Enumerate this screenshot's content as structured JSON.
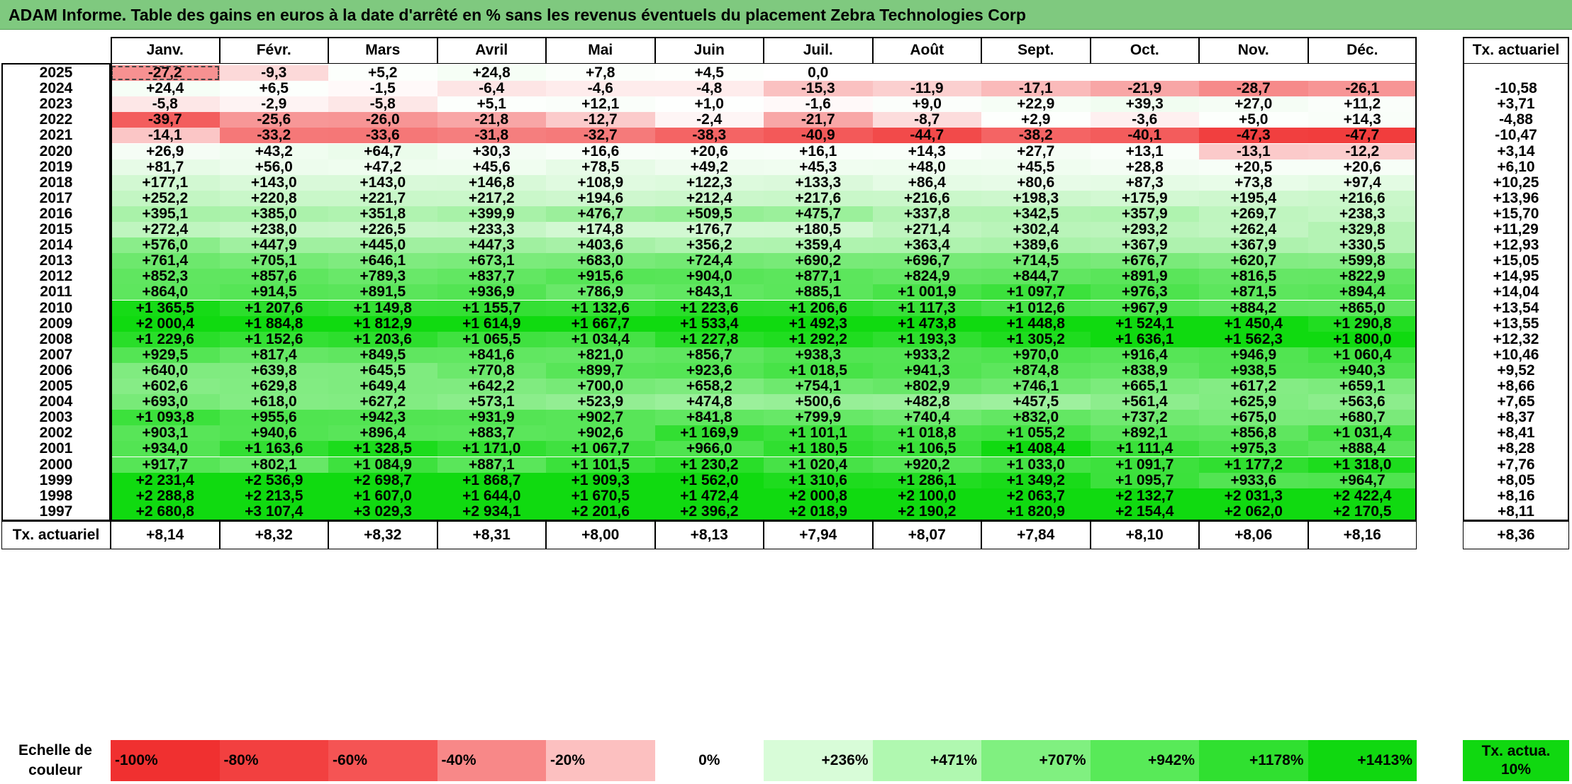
{
  "title": "ADAM Informe. Table des gains en euros à la date d'arrêté en % sans les revenus éventuels du placement Zebra Technologies Corp",
  "chart_data": {
    "type": "table",
    "columns": [
      "Janv.",
      "Févr.",
      "Mars",
      "Avril",
      "Mai",
      "Juin",
      "Juil.",
      "Août",
      "Sept.",
      "Oct.",
      "Nov.",
      "Déc."
    ],
    "rate_header": "Tx. actuariel",
    "rows": [
      {
        "year": "2025",
        "values": [
          "-27,2",
          "-9,3",
          "+5,2",
          "+24,8",
          "+7,8",
          "+4,5",
          "0,0",
          "",
          "",
          "",
          "",
          ""
        ],
        "rate": ""
      },
      {
        "year": "2024",
        "values": [
          "+24,4",
          "+6,5",
          "-1,5",
          "-6,4",
          "-4,6",
          "-4,8",
          "-15,3",
          "-11,9",
          "-17,1",
          "-21,9",
          "-28,7",
          "-26,1"
        ],
        "rate": "-10,58"
      },
      {
        "year": "2023",
        "values": [
          "-5,8",
          "-2,9",
          "-5,8",
          "+5,1",
          "+12,1",
          "+1,0",
          "-1,6",
          "+9,0",
          "+22,9",
          "+39,3",
          "+27,0",
          "+11,2"
        ],
        "rate": "+3,71"
      },
      {
        "year": "2022",
        "values": [
          "-39,7",
          "-25,6",
          "-26,0",
          "-21,8",
          "-12,7",
          "-2,4",
          "-21,7",
          "-8,7",
          "+2,9",
          "-3,6",
          "+5,0",
          "+14,3"
        ],
        "rate": "-4,88"
      },
      {
        "year": "2021",
        "values": [
          "-14,1",
          "-33,2",
          "-33,6",
          "-31,8",
          "-32,7",
          "-38,3",
          "-40,9",
          "-44,7",
          "-38,2",
          "-40,1",
          "-47,3",
          "-47,7"
        ],
        "rate": "-10,47"
      },
      {
        "year": "2020",
        "values": [
          "+26,9",
          "+43,2",
          "+64,7",
          "+30,3",
          "+16,6",
          "+20,6",
          "+16,1",
          "+14,3",
          "+27,7",
          "+13,1",
          "-13,1",
          "-12,2"
        ],
        "rate": "+3,14"
      },
      {
        "year": "2019",
        "values": [
          "+81,7",
          "+56,0",
          "+47,2",
          "+45,6",
          "+78,5",
          "+49,2",
          "+45,3",
          "+48,0",
          "+45,5",
          "+28,8",
          "+20,5",
          "+20,6"
        ],
        "rate": "+6,10"
      },
      {
        "year": "2018",
        "values": [
          "+177,1",
          "+143,0",
          "+143,0",
          "+146,8",
          "+108,9",
          "+122,3",
          "+133,3",
          "+86,4",
          "+80,6",
          "+87,3",
          "+73,8",
          "+97,4"
        ],
        "rate": "+10,25"
      },
      {
        "year": "2017",
        "values": [
          "+252,2",
          "+220,8",
          "+221,7",
          "+217,2",
          "+194,6",
          "+212,4",
          "+217,6",
          "+216,6",
          "+198,3",
          "+175,9",
          "+195,4",
          "+216,6"
        ],
        "rate": "+13,96"
      },
      {
        "year": "2016",
        "values": [
          "+395,1",
          "+385,0",
          "+351,8",
          "+399,9",
          "+476,7",
          "+509,5",
          "+475,7",
          "+337,8",
          "+342,5",
          "+357,9",
          "+269,7",
          "+238,3"
        ],
        "rate": "+15,70"
      },
      {
        "year": "2015",
        "values": [
          "+272,4",
          "+238,0",
          "+226,5",
          "+233,3",
          "+174,8",
          "+176,7",
          "+180,5",
          "+271,4",
          "+302,4",
          "+293,2",
          "+262,4",
          "+329,8"
        ],
        "rate": "+11,29"
      },
      {
        "year": "2014",
        "values": [
          "+576,0",
          "+447,9",
          "+445,0",
          "+447,3",
          "+403,6",
          "+356,2",
          "+359,4",
          "+363,4",
          "+389,6",
          "+367,9",
          "+367,9",
          "+330,5"
        ],
        "rate": "+12,93"
      },
      {
        "year": "2013",
        "values": [
          "+761,4",
          "+705,1",
          "+646,1",
          "+673,1",
          "+683,0",
          "+724,4",
          "+690,2",
          "+696,7",
          "+714,5",
          "+676,7",
          "+620,7",
          "+599,8"
        ],
        "rate": "+15,05"
      },
      {
        "year": "2012",
        "values": [
          "+852,3",
          "+857,6",
          "+789,3",
          "+837,7",
          "+915,6",
          "+904,0",
          "+877,1",
          "+824,9",
          "+844,7",
          "+891,9",
          "+816,5",
          "+822,9"
        ],
        "rate": "+14,95"
      },
      {
        "year": "2011",
        "values": [
          "+864,0",
          "+914,5",
          "+891,5",
          "+936,9",
          "+786,9",
          "+843,1",
          "+885,1",
          "+1 001,9",
          "+1 097,7",
          "+976,3",
          "+871,5",
          "+894,4"
        ],
        "rate": "+14,04"
      },
      {
        "year": "2010",
        "values": [
          "+1 365,5",
          "+1 207,6",
          "+1 149,8",
          "+1 155,7",
          "+1 132,6",
          "+1 223,6",
          "+1 206,6",
          "+1 117,3",
          "+1 012,6",
          "+967,9",
          "+884,2",
          "+865,0"
        ],
        "rate": "+13,54"
      },
      {
        "year": "2009",
        "values": [
          "+2 000,4",
          "+1 884,8",
          "+1 812,9",
          "+1 614,9",
          "+1 667,7",
          "+1 533,4",
          "+1 492,3",
          "+1 473,8",
          "+1 448,8",
          "+1 524,1",
          "+1 450,4",
          "+1 290,8"
        ],
        "rate": "+13,55"
      },
      {
        "year": "2008",
        "values": [
          "+1 229,6",
          "+1 152,6",
          "+1 203,6",
          "+1 065,5",
          "+1 034,4",
          "+1 227,8",
          "+1 292,2",
          "+1 193,3",
          "+1 305,2",
          "+1 636,1",
          "+1 562,3",
          "+1 800,0"
        ],
        "rate": "+12,32"
      },
      {
        "year": "2007",
        "values": [
          "+929,5",
          "+817,4",
          "+849,5",
          "+841,6",
          "+821,0",
          "+856,7",
          "+938,3",
          "+933,2",
          "+970,0",
          "+916,4",
          "+946,9",
          "+1 060,4"
        ],
        "rate": "+10,46"
      },
      {
        "year": "2006",
        "values": [
          "+640,0",
          "+639,8",
          "+645,5",
          "+770,8",
          "+899,7",
          "+923,6",
          "+1 018,5",
          "+941,3",
          "+874,8",
          "+838,9",
          "+938,5",
          "+940,3"
        ],
        "rate": "+9,52"
      },
      {
        "year": "2005",
        "values": [
          "+602,6",
          "+629,8",
          "+649,4",
          "+642,2",
          "+700,0",
          "+658,2",
          "+754,1",
          "+802,9",
          "+746,1",
          "+665,1",
          "+617,2",
          "+659,1"
        ],
        "rate": "+8,66"
      },
      {
        "year": "2004",
        "values": [
          "+693,0",
          "+618,0",
          "+627,2",
          "+573,1",
          "+523,9",
          "+474,8",
          "+500,6",
          "+482,8",
          "+457,5",
          "+561,4",
          "+625,9",
          "+563,6"
        ],
        "rate": "+7,65"
      },
      {
        "year": "2003",
        "values": [
          "+1 093,8",
          "+955,6",
          "+942,3",
          "+931,9",
          "+902,7",
          "+841,8",
          "+799,9",
          "+740,4",
          "+832,0",
          "+737,2",
          "+675,0",
          "+680,7"
        ],
        "rate": "+8,37"
      },
      {
        "year": "2002",
        "values": [
          "+903,1",
          "+940,6",
          "+896,4",
          "+883,7",
          "+902,6",
          "+1 169,9",
          "+1 101,1",
          "+1 018,8",
          "+1 055,2",
          "+892,1",
          "+856,8",
          "+1 031,4"
        ],
        "rate": "+8,41"
      },
      {
        "year": "2001",
        "values": [
          "+934,0",
          "+1 163,6",
          "+1 328,5",
          "+1 171,0",
          "+1 067,7",
          "+966,0",
          "+1 180,5",
          "+1 106,5",
          "+1 408,4",
          "+1 111,4",
          "+975,3",
          "+888,4"
        ],
        "rate": "+8,28"
      },
      {
        "year": "2000",
        "values": [
          "+917,7",
          "+802,1",
          "+1 084,9",
          "+887,1",
          "+1 101,5",
          "+1 230,2",
          "+1 020,4",
          "+920,2",
          "+1 033,0",
          "+1 091,7",
          "+1 177,2",
          "+1 318,0"
        ],
        "rate": "+7,76"
      },
      {
        "year": "1999",
        "values": [
          "+2 231,4",
          "+2 536,9",
          "+2 698,7",
          "+1 868,7",
          "+1 909,3",
          "+1 562,0",
          "+1 310,6",
          "+1 286,1",
          "+1 349,2",
          "+1 095,7",
          "+933,6",
          "+964,7"
        ],
        "rate": "+8,05"
      },
      {
        "year": "1998",
        "values": [
          "+2 288,8",
          "+2 213,5",
          "+1 607,0",
          "+1 644,0",
          "+1 670,5",
          "+1 472,4",
          "+2 000,8",
          "+2 100,0",
          "+2 063,7",
          "+2 132,7",
          "+2 031,3",
          "+2 422,4"
        ],
        "rate": "+8,16"
      },
      {
        "year": "1997",
        "values": [
          "+2 680,8",
          "+3 107,4",
          "+3 029,3",
          "+2 934,1",
          "+2 201,6",
          "+2 396,2",
          "+2 018,9",
          "+2 190,2",
          "+1 820,9",
          "+2 154,4",
          "+2 062,0",
          "+2 170,5"
        ],
        "rate": "+8,11"
      }
    ],
    "footer": {
      "label": "Tx. actuariel",
      "values": [
        "+8,14",
        "+8,32",
        "+8,32",
        "+8,31",
        "+8,00",
        "+8,13",
        "+7,94",
        "+8,07",
        "+7,84",
        "+8,10",
        "+8,06",
        "+8,16"
      ],
      "rate": "+8,36"
    },
    "legend": {
      "label": "Echelle de couleur",
      "items": [
        {
          "text": "-100%",
          "color": "#f03030"
        },
        {
          "text": "-80%",
          "color": "#f24040"
        },
        {
          "text": "-60%",
          "color": "#f55454"
        },
        {
          "text": "-40%",
          "color": "#f88888"
        },
        {
          "text": "-20%",
          "color": "#fcc0c0"
        },
        {
          "text": "0%",
          "color": "#ffffff"
        },
        {
          "text": "+236%",
          "color": "#d8fcd8"
        },
        {
          "text": "+471%",
          "color": "#b0f8b0"
        },
        {
          "text": "+707%",
          "color": "#80f080"
        },
        {
          "text": "+942%",
          "color": "#58ea58"
        },
        {
          "text": "+1178%",
          "color": "#30e030"
        },
        {
          "text": "+1413%",
          "color": "#10d810"
        }
      ],
      "rate_label": "Tx. actua. 10%",
      "rate_color": "#10d810"
    }
  }
}
